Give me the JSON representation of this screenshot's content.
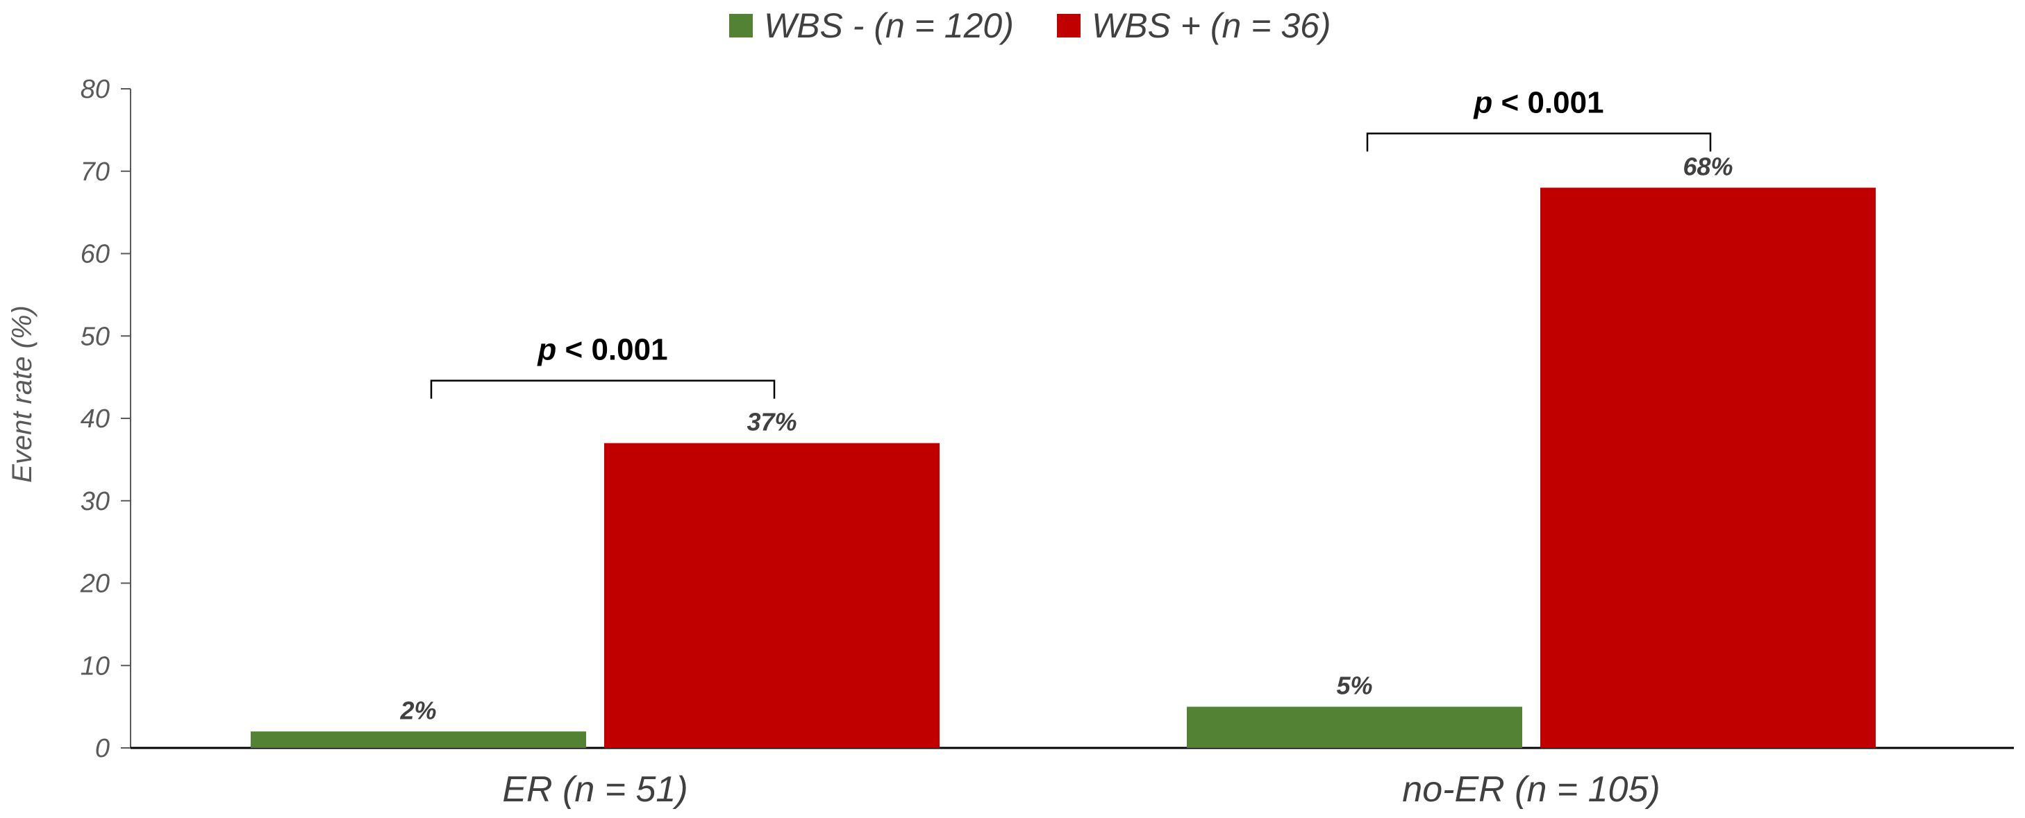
{
  "chart_data": {
    "type": "bar",
    "categories": [
      "ER (n = 51)",
      "no-ER (n = 105)"
    ],
    "series": [
      {
        "name": "WBS - (n = 120)",
        "color": "#548235",
        "values": [
          2,
          5
        ],
        "labels": [
          "2%",
          "5%"
        ]
      },
      {
        "name": "WBS + (n = 36)",
        "color": "#C00000",
        "values": [
          37,
          68
        ],
        "labels": [
          "37%",
          "68%"
        ]
      }
    ],
    "ylabel": "Event rate (%)",
    "ylim": [
      0,
      80
    ],
    "yticks": [
      0,
      10,
      20,
      30,
      40,
      50,
      60,
      70,
      80
    ],
    "ytick_labels": [
      "0",
      "10",
      "20",
      "30",
      "40",
      "50",
      "60",
      "70",
      "80"
    ],
    "grid": false,
    "legend_position": "top",
    "annotations": [
      {
        "category": "ER (n = 51)",
        "p_symbol": "p",
        "p_rest": " < 0.001",
        "bracket_level": 45
      },
      {
        "category": "no-ER (n = 105)",
        "p_symbol": "p",
        "p_rest": " < 0.001",
        "bracket_level": 75
      }
    ]
  }
}
